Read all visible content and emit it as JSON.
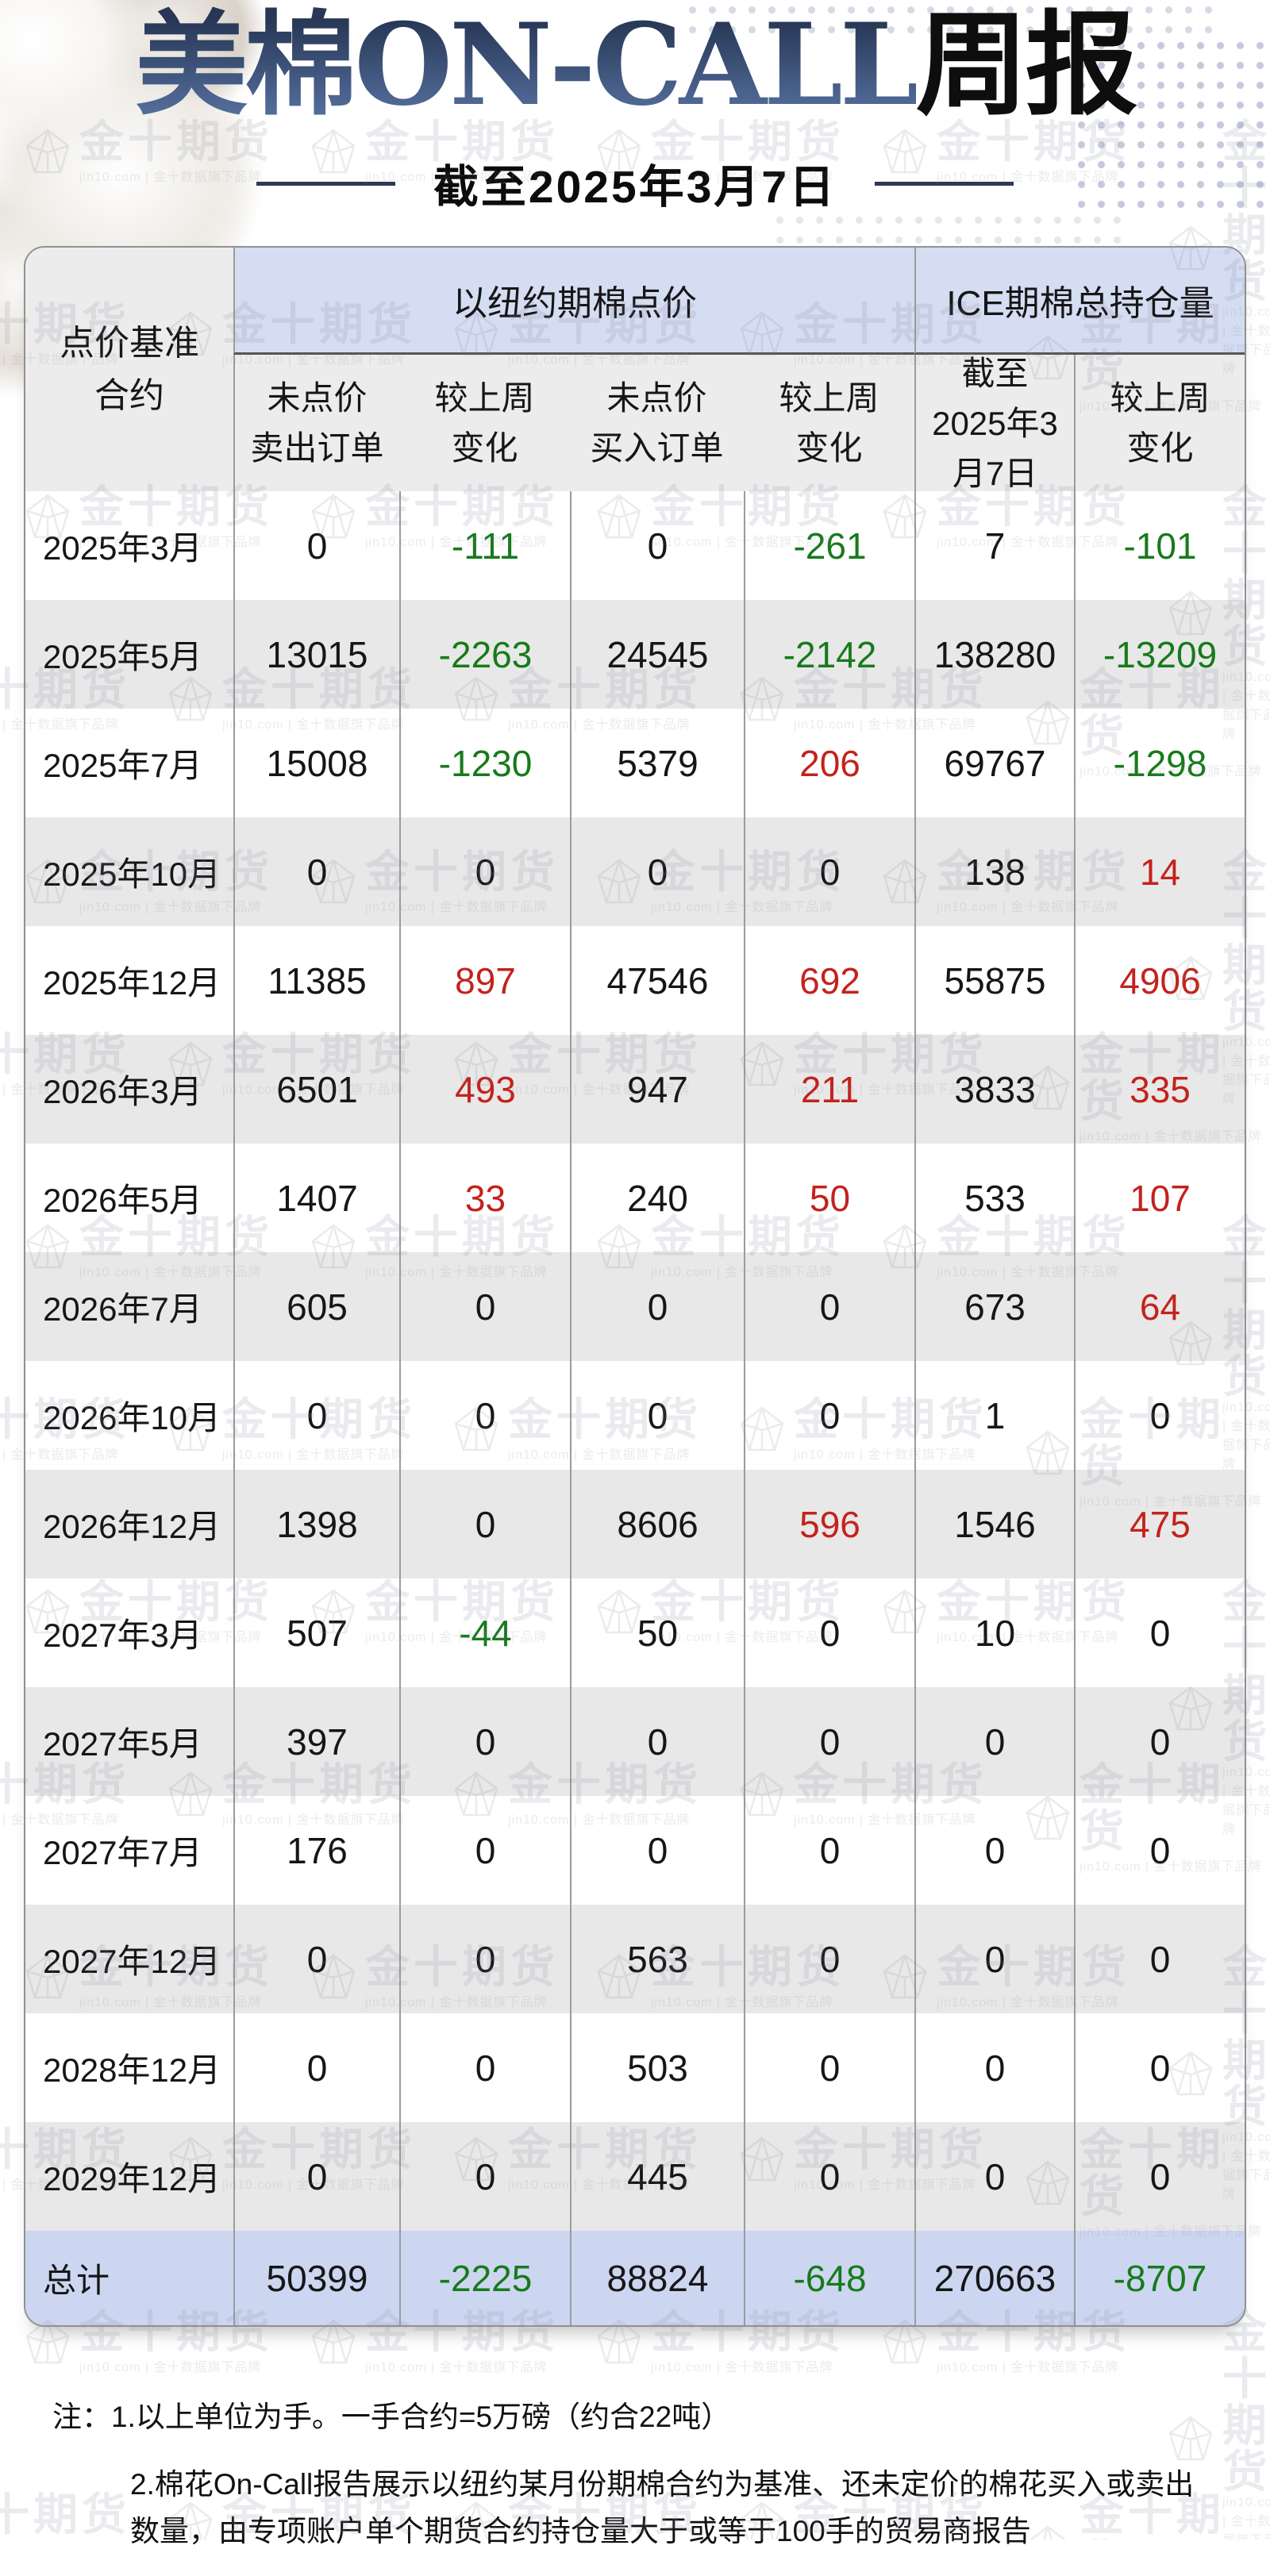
{
  "page": {
    "title_primary": "美棉ON-CALL",
    "title_secondary": "周报",
    "subtitle": "截至2025年3月7日",
    "notes": [
      "注：1.以上单位为手。一手合约=5万磅（约合22吨）",
      "2.棉花On-Call报告展示以纽约某月份期棉合约为基准、还未定价的棉花买入或卖出数量，由专项账户单个期货合约持仓量大于或等于100手的贸易商报告"
    ],
    "watermark": {
      "text": "金十期货",
      "subtext": "jin10.com | 金十数据旗下品牌"
    }
  },
  "colors": {
    "positive_red": "#c4221c",
    "negative_green": "#177a1b",
    "neutral_text": "#161616",
    "group_header_bg": "#d5ddf3",
    "subheader_bg": "#ececec",
    "row_alt_bg": "#e8e8e8",
    "total_row_bg": "#ccd6f1",
    "title_navy": "#374b73"
  },
  "chart_data": {
    "type": "table",
    "title": "美棉ON-CALL周报",
    "as_of_label": "截至2025年3月7日",
    "corner_header": "点价基准\n合约",
    "groups": [
      {
        "label": "以纽约期棉点价",
        "span": 4
      },
      {
        "label": "ICE期棉总持仓量",
        "span": 2
      }
    ],
    "sub_headers": [
      "未点价\n卖出订单",
      "较上周\n变化",
      "未点价\n买入订单",
      "较上周\n变化",
      "截至\n2025年3\n月7日",
      "较上周\n变化"
    ],
    "change_column_indexes": [
      1,
      3,
      5
    ],
    "rows": [
      {
        "label": "2025年3月",
        "values": [
          0,
          -111,
          0,
          -261,
          7,
          -101
        ]
      },
      {
        "label": "2025年5月",
        "values": [
          13015,
          -2263,
          24545,
          -2142,
          138280,
          -13209
        ]
      },
      {
        "label": "2025年7月",
        "values": [
          15008,
          -1230,
          5379,
          206,
          69767,
          -1298
        ]
      },
      {
        "label": "2025年10月",
        "values": [
          0,
          0,
          0,
          0,
          138,
          14
        ]
      },
      {
        "label": "2025年12月",
        "values": [
          11385,
          897,
          47546,
          692,
          55875,
          4906
        ]
      },
      {
        "label": "2026年3月",
        "values": [
          6501,
          493,
          947,
          211,
          3833,
          335
        ]
      },
      {
        "label": "2026年5月",
        "values": [
          1407,
          33,
          240,
          50,
          533,
          107
        ]
      },
      {
        "label": "2026年7月",
        "values": [
          605,
          0,
          0,
          0,
          673,
          64
        ]
      },
      {
        "label": "2026年10月",
        "values": [
          0,
          0,
          0,
          0,
          1,
          0
        ]
      },
      {
        "label": "2026年12月",
        "values": [
          1398,
          0,
          8606,
          596,
          1546,
          475
        ]
      },
      {
        "label": "2027年3月",
        "values": [
          507,
          -44,
          50,
          0,
          10,
          0
        ]
      },
      {
        "label": "2027年5月",
        "values": [
          397,
          0,
          0,
          0,
          0,
          0
        ]
      },
      {
        "label": "2027年7月",
        "values": [
          176,
          0,
          0,
          0,
          0,
          0
        ]
      },
      {
        "label": "2027年12月",
        "values": [
          0,
          0,
          563,
          0,
          0,
          0
        ]
      },
      {
        "label": "2028年12月",
        "values": [
          0,
          0,
          503,
          0,
          0,
          0
        ]
      },
      {
        "label": "2029年12月",
        "values": [
          0,
          0,
          445,
          0,
          0,
          0
        ]
      }
    ],
    "total": {
      "label": "总计",
      "values": [
        50399,
        -2225,
        88824,
        -648,
        270663,
        -8707
      ]
    }
  }
}
